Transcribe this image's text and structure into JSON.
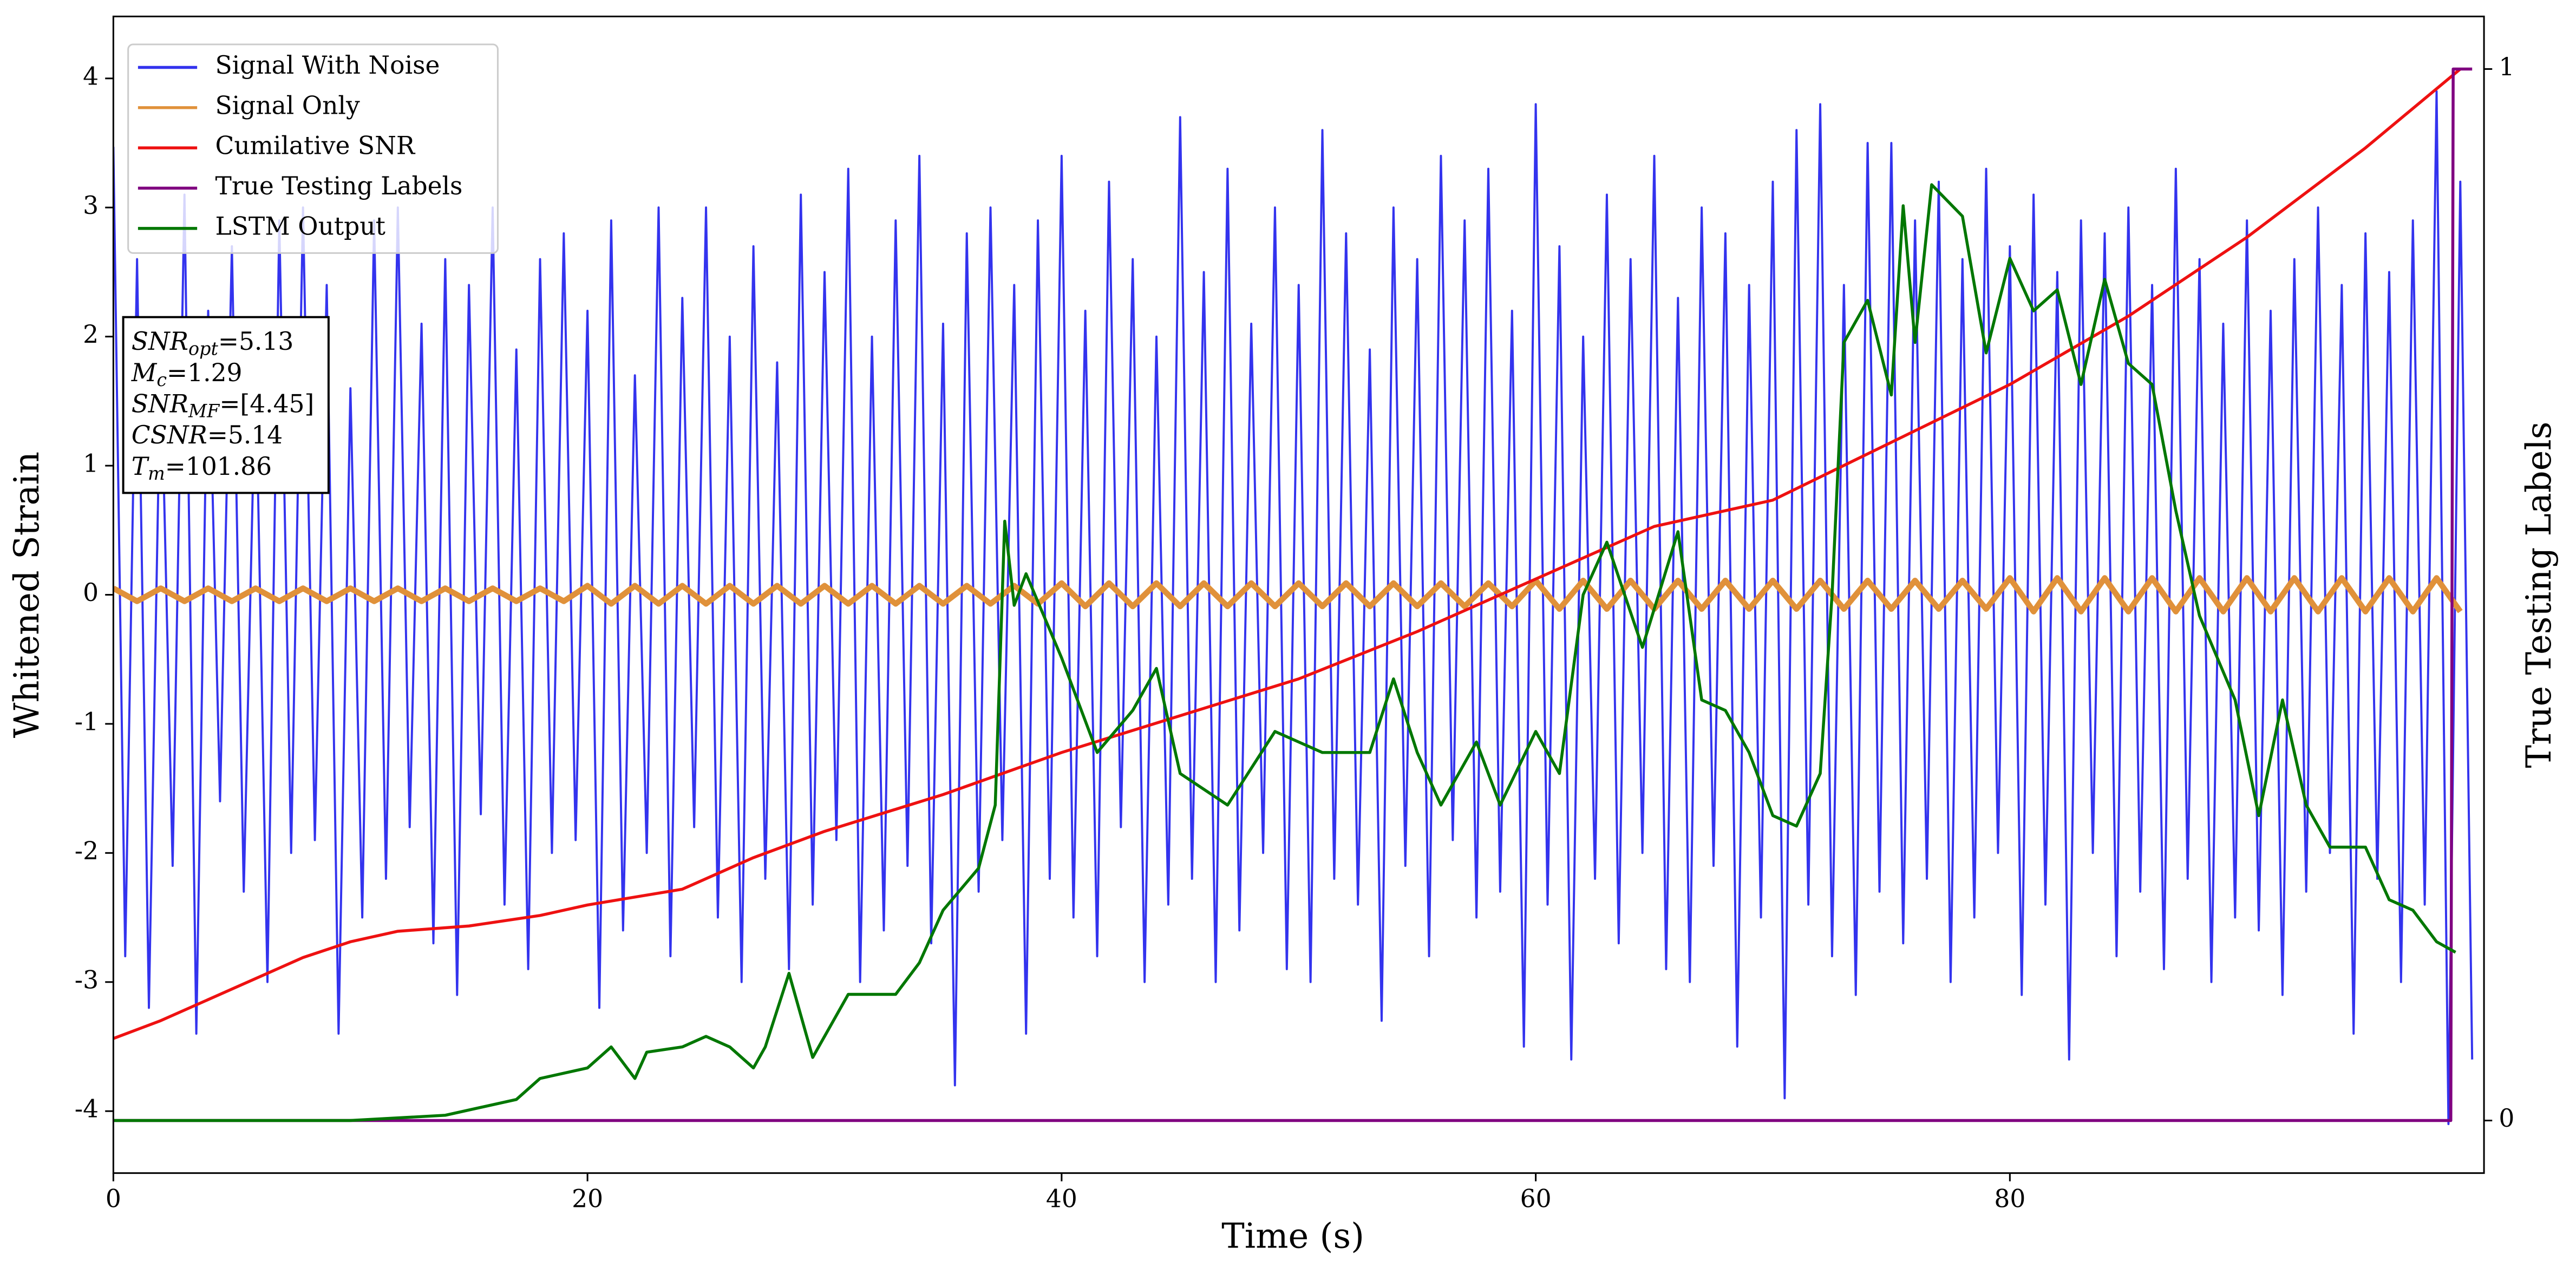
{
  "chart_data": {
    "type": "line",
    "xlabel": "Time (s)",
    "ylabel": "Whitened Strain",
    "y2label": "True Testing Labels",
    "xlim": [
      0,
      100
    ],
    "ylim": [
      -4.48,
      4.48
    ],
    "y2lim": [
      -0.05,
      1.05
    ],
    "xticks": [
      0,
      20,
      40,
      60,
      80
    ],
    "yticks": [
      -4,
      -3,
      -2,
      -1,
      0,
      1,
      2,
      3,
      4
    ],
    "y2ticks": [
      0,
      1
    ],
    "legend": "upper left",
    "annotation": [
      {
        "main": "SNR",
        "sub": "opt",
        "value": "=5.13"
      },
      {
        "main": "M",
        "sub": "c",
        "value": "=1.29"
      },
      {
        "main": "SNR",
        "sub": "MF",
        "value": "=[4.45]"
      },
      {
        "main": "CSNR",
        "sub": null,
        "value": "=5.14"
      },
      {
        "main": "T",
        "sub": "m",
        "value": "=101.86"
      }
    ],
    "series": [
      {
        "name": "Signal With Noise",
        "color": "#3333ee",
        "width": 1.3,
        "x": [
          0,
          0.5,
          1,
          1.5,
          2,
          2.5,
          3,
          3.5,
          4,
          4.5,
          5,
          5.5,
          6,
          6.5,
          7,
          7.5,
          8,
          8.5,
          9,
          9.5,
          10,
          10.5,
          11,
          11.5,
          12,
          12.5,
          13,
          13.5,
          14,
          14.5,
          15,
          15.5,
          16,
          16.5,
          17,
          17.5,
          18,
          18.5,
          19,
          19.5,
          20,
          20.5,
          21,
          21.5,
          22,
          22.5,
          23,
          23.5,
          24,
          24.5,
          25,
          25.5,
          26,
          26.5,
          27,
          27.5,
          28,
          28.5,
          29,
          29.5,
          30,
          30.5,
          31,
          31.5,
          32,
          32.5,
          33,
          33.5,
          34,
          34.5,
          35,
          35.5,
          36,
          36.5,
          37,
          37.5,
          38,
          38.5,
          39,
          39.5,
          40,
          40.5,
          41,
          41.5,
          42,
          42.5,
          43,
          43.5,
          44,
          44.5,
          45,
          45.5,
          46,
          46.5,
          47,
          47.5,
          48,
          48.5,
          49,
          49.5,
          50,
          50.5,
          51,
          51.5,
          52,
          52.5,
          53,
          53.5,
          54,
          54.5,
          55,
          55.5,
          56,
          56.5,
          57,
          57.5,
          58,
          58.5,
          59,
          59.5,
          60,
          60.5,
          61,
          61.5,
          62,
          62.5,
          63,
          63.5,
          64,
          64.5,
          65,
          65.5,
          66,
          66.5,
          67,
          67.5,
          68,
          68.5,
          69,
          69.5,
          70,
          70.5,
          71,
          71.5,
          72,
          72.5,
          73,
          73.5,
          74,
          74.5,
          75,
          75.5,
          76,
          76.5,
          77,
          77.5,
          78,
          78.5,
          79,
          79.5,
          80,
          80.5,
          81,
          81.5,
          82,
          82.5,
          83,
          83.5,
          84,
          84.5,
          85,
          85.5,
          86,
          86.5,
          87,
          87.5,
          88,
          88.5,
          89,
          89.5,
          90,
          90.5,
          91,
          91.5,
          92,
          92.5,
          93,
          93.5,
          94,
          94.5,
          95,
          95.5,
          96,
          96.5,
          97,
          97.5,
          98,
          98.5,
          99,
          99.5
        ],
        "values": [
          3.47,
          -2.8,
          2.6,
          -3.2,
          1.9,
          -2.1,
          3.1,
          -3.4,
          2.2,
          -1.6,
          2.7,
          -2.3,
          1.8,
          -3.0,
          2.9,
          -2.0,
          3.0,
          -1.9,
          2.4,
          -3.4,
          1.6,
          -2.5,
          2.9,
          -2.2,
          3.0,
          -1.8,
          2.1,
          -2.7,
          2.6,
          -3.1,
          2.4,
          -1.7,
          3.0,
          -2.4,
          1.9,
          -2.9,
          2.6,
          -2.0,
          2.8,
          -1.9,
          2.2,
          -3.2,
          2.9,
          -2.6,
          1.7,
          -2.0,
          3.0,
          -2.8,
          2.3,
          -1.8,
          3.0,
          -2.5,
          2.0,
          -3.0,
          2.7,
          -2.2,
          1.8,
          -2.9,
          3.1,
          -2.4,
          2.5,
          -1.9,
          3.3,
          -3.0,
          2.0,
          -2.6,
          2.9,
          -2.1,
          3.4,
          -2.7,
          2.1,
          -3.8,
          2.8,
          -2.3,
          3.0,
          -1.9,
          2.4,
          -3.4,
          2.9,
          -2.2,
          3.4,
          -2.5,
          2.2,
          -2.8,
          3.2,
          -1.8,
          2.6,
          -3.0,
          2.0,
          -2.4,
          3.7,
          -2.2,
          2.5,
          -3.0,
          3.3,
          -2.6,
          2.1,
          -2.0,
          3.0,
          -2.9,
          2.4,
          -3.0,
          3.6,
          -2.2,
          2.8,
          -2.4,
          1.9,
          -3.3,
          3.0,
          -2.1,
          2.6,
          -2.8,
          3.4,
          -1.9,
          2.9,
          -2.5,
          3.3,
          -2.3,
          2.2,
          -3.5,
          3.8,
          -2.4,
          2.7,
          -3.6,
          2.0,
          -2.2,
          3.1,
          -2.7,
          2.6,
          -2.0,
          3.4,
          -2.9,
          2.3,
          -3.0,
          3.0,
          -2.1,
          2.8,
          -3.5,
          2.4,
          -2.5,
          3.2,
          -3.9,
          3.6,
          -2.4,
          3.8,
          -2.8,
          2.4,
          -3.1,
          3.5,
          -2.3,
          3.5,
          -2.7,
          2.9,
          -2.2,
          3.2,
          -3.0,
          2.6,
          -2.5,
          3.3,
          -2.0,
          2.7,
          -3.1,
          3.1,
          -2.4,
          2.5,
          -3.6,
          2.9,
          -2.0,
          2.8,
          -2.8,
          3.0,
          -2.3,
          2.4,
          -2.9,
          3.3,
          -2.2,
          2.6,
          -3.0,
          2.1,
          -2.5,
          2.9,
          -2.6,
          2.2,
          -3.1,
          2.6,
          -2.3,
          3.0,
          -2.0,
          2.4,
          -3.4,
          2.8,
          -2.2,
          2.5,
          -3.0,
          2.9,
          -2.4,
          3.9,
          -4.1,
          3.2,
          -3.6
        ]
      },
      {
        "name": "Signal Only",
        "color": "#e0913a",
        "width": 3.5,
        "x": [
          0,
          1,
          2,
          3,
          4,
          5,
          6,
          7,
          8,
          9,
          10,
          11,
          12,
          13,
          14,
          15,
          16,
          17,
          18,
          19,
          20,
          21,
          22,
          23,
          24,
          25,
          26,
          27,
          28,
          29,
          30,
          31,
          32,
          33,
          34,
          35,
          36,
          37,
          38,
          39,
          40,
          41,
          42,
          43,
          44,
          45,
          46,
          47,
          48,
          49,
          50,
          51,
          52,
          53,
          54,
          55,
          56,
          57,
          58,
          59,
          60,
          61,
          62,
          63,
          64,
          65,
          66,
          67,
          68,
          69,
          70,
          71,
          72,
          73,
          74,
          75,
          76,
          77,
          78,
          79,
          80,
          81,
          82,
          83,
          84,
          85,
          86,
          87,
          88,
          89,
          90,
          91,
          92,
          93,
          94,
          95,
          96,
          97,
          98,
          99
        ],
        "values": [
          0.05,
          -0.05,
          0.05,
          -0.05,
          0.05,
          -0.05,
          0.05,
          -0.05,
          0.05,
          -0.05,
          0.05,
          -0.05,
          0.05,
          -0.05,
          0.05,
          -0.05,
          0.05,
          -0.05,
          0.05,
          -0.05,
          0.07,
          -0.07,
          0.07,
          -0.07,
          0.07,
          -0.07,
          0.07,
          -0.07,
          0.07,
          -0.07,
          0.07,
          -0.07,
          0.07,
          -0.07,
          0.07,
          -0.07,
          0.07,
          -0.07,
          0.07,
          -0.07,
          0.09,
          -0.09,
          0.09,
          -0.09,
          0.09,
          -0.09,
          0.09,
          -0.09,
          0.09,
          -0.09,
          0.09,
          -0.09,
          0.09,
          -0.09,
          0.09,
          -0.09,
          0.09,
          -0.09,
          0.09,
          -0.09,
          0.11,
          -0.11,
          0.11,
          -0.11,
          0.11,
          -0.11,
          0.11,
          -0.11,
          0.11,
          -0.11,
          0.11,
          -0.11,
          0.11,
          -0.11,
          0.11,
          -0.11,
          0.11,
          -0.11,
          0.11,
          -0.11,
          0.13,
          -0.13,
          0.13,
          -0.13,
          0.13,
          -0.13,
          0.13,
          -0.13,
          0.13,
          -0.13,
          0.13,
          -0.13,
          0.13,
          -0.13,
          0.13,
          -0.13,
          0.13,
          -0.13,
          0.13,
          -0.13
        ]
      },
      {
        "name": "Cumilative SNR",
        "color": "#ee1111",
        "width": 1.8,
        "axis": "y2",
        "x": [
          0,
          2,
          5,
          8,
          10,
          12,
          15,
          18,
          20,
          24,
          27,
          30,
          35,
          40,
          45,
          50,
          55,
          60,
          65,
          70,
          75,
          80,
          85,
          90,
          95,
          99
        ],
        "values": [
          0.078,
          0.095,
          0.125,
          0.155,
          0.17,
          0.18,
          0.185,
          0.195,
          0.205,
          0.22,
          0.25,
          0.275,
          0.31,
          0.35,
          0.385,
          0.42,
          0.465,
          0.515,
          0.565,
          0.59,
          0.645,
          0.7,
          0.765,
          0.84,
          0.925,
          1.0
        ]
      },
      {
        "name": "True Testing Labels",
        "color": "#800080",
        "width": 1.8,
        "axis": "y2",
        "x": [
          0,
          98.6,
          98.7,
          99.5
        ],
        "values": [
          0,
          0,
          1,
          1
        ]
      },
      {
        "name": "LSTM Output",
        "color": "#007700",
        "width": 1.8,
        "axis": "y2",
        "x": [
          0,
          10,
          14,
          17,
          18,
          20,
          21,
          22,
          22.5,
          24,
          25,
          26,
          27,
          27.5,
          28.5,
          29.5,
          31,
          33,
          34,
          35,
          36.5,
          37.2,
          37.6,
          38,
          38.5,
          40,
          41.5,
          43,
          44,
          45,
          47,
          49,
          51,
          53,
          54,
          55,
          56,
          57.5,
          58.5,
          60,
          61,
          62,
          63,
          64.5,
          66,
          67,
          68,
          69,
          70,
          71,
          72,
          72.5,
          73,
          74,
          75,
          75.5,
          76,
          76.7,
          78,
          79,
          80,
          81,
          82,
          83,
          84,
          85,
          86,
          87,
          88,
          89.5,
          90.5,
          91.5,
          92.5,
          93.5,
          95,
          96,
          97,
          98,
          98.8
        ],
        "values": [
          0,
          0,
          0.005,
          0.02,
          0.04,
          0.05,
          0.07,
          0.04,
          0.065,
          0.07,
          0.08,
          0.07,
          0.05,
          0.07,
          0.14,
          0.06,
          0.12,
          0.12,
          0.15,
          0.2,
          0.24,
          0.3,
          0.57,
          0.49,
          0.52,
          0.44,
          0.35,
          0.39,
          0.43,
          0.33,
          0.3,
          0.37,
          0.35,
          0.35,
          0.42,
          0.35,
          0.3,
          0.36,
          0.3,
          0.37,
          0.33,
          0.5,
          0.55,
          0.45,
          0.56,
          0.4,
          0.39,
          0.35,
          0.29,
          0.28,
          0.33,
          0.5,
          0.74,
          0.78,
          0.69,
          0.87,
          0.74,
          0.89,
          0.86,
          0.73,
          0.82,
          0.77,
          0.79,
          0.7,
          0.8,
          0.72,
          0.7,
          0.58,
          0.48,
          0.4,
          0.29,
          0.4,
          0.3,
          0.26,
          0.26,
          0.21,
          0.2,
          0.17,
          0.16
        ]
      }
    ]
  }
}
